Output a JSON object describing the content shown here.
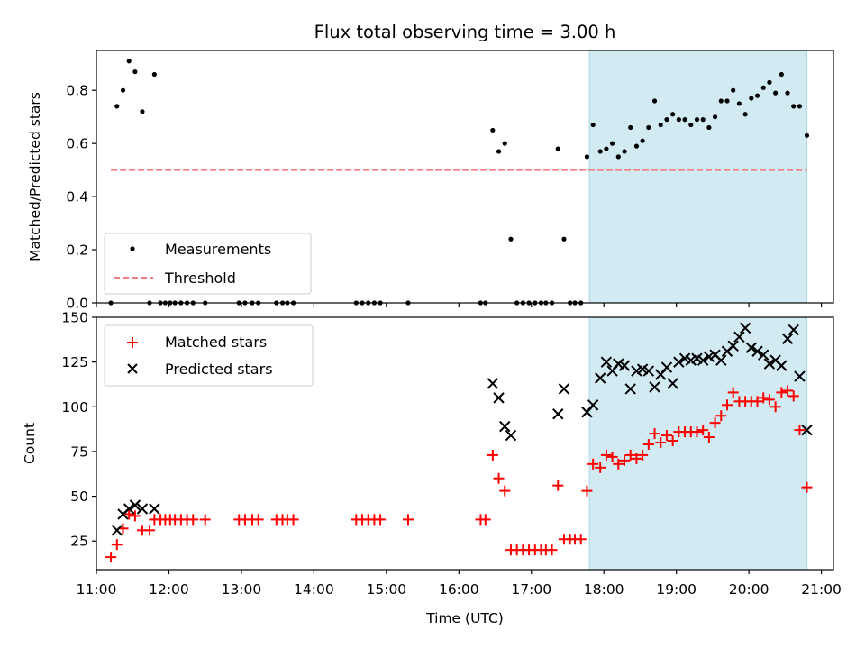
{
  "chart_data": [
    {
      "type": "scatter",
      "title": "Flux total observing time = 3.00 h",
      "ylabel": "Matched/Predicted stars",
      "ylim": [
        0,
        0.95
      ],
      "xlim": [
        "11:00",
        "21:10"
      ],
      "yticks": [
        "0.0",
        "0.2",
        "0.4",
        "0.6",
        "0.8"
      ],
      "legend_position": "lower-left",
      "observing_window": [
        "17:48",
        "20:48"
      ],
      "threshold": {
        "name": "Threshold",
        "value": 0.5,
        "x_range": [
          "11:12",
          "20:48"
        ],
        "color": "#f08080"
      },
      "series": [
        {
          "name": "Measurements",
          "color": "#000000",
          "points": [
            [
              "11:12",
              0
            ],
            [
              "11:17",
              0.74
            ],
            [
              "11:22",
              0.8
            ],
            [
              "11:27",
              0.91
            ],
            [
              "11:32",
              0.87
            ],
            [
              "11:38",
              0.72
            ],
            [
              "11:44",
              0
            ],
            [
              "11:48",
              0.86
            ],
            [
              "11:53",
              0
            ],
            [
              "11:57",
              0
            ],
            [
              "12:01",
              0
            ],
            [
              "12:05",
              0
            ],
            [
              "12:10",
              0
            ],
            [
              "12:15",
              0
            ],
            [
              "12:20",
              0
            ],
            [
              "12:30",
              0
            ],
            [
              "12:58",
              0
            ],
            [
              "13:03",
              0
            ],
            [
              "13:09",
              0
            ],
            [
              "13:14",
              0
            ],
            [
              "13:29",
              0
            ],
            [
              "13:34",
              0
            ],
            [
              "13:38",
              0
            ],
            [
              "13:43",
              0
            ],
            [
              "14:35",
              0
            ],
            [
              "14:40",
              0
            ],
            [
              "14:45",
              0
            ],
            [
              "14:50",
              0
            ],
            [
              "14:55",
              0
            ],
            [
              "15:18",
              0
            ],
            [
              "16:18",
              0
            ],
            [
              "16:22",
              0
            ],
            [
              "16:28",
              0.65
            ],
            [
              "16:33",
              0.57
            ],
            [
              "16:38",
              0.6
            ],
            [
              "16:43",
              0.24
            ],
            [
              "16:48",
              0
            ],
            [
              "16:53",
              0
            ],
            [
              "16:58",
              0
            ],
            [
              "17:03",
              0
            ],
            [
              "17:08",
              0
            ],
            [
              "17:12",
              0
            ],
            [
              "17:17",
              0
            ],
            [
              "17:22",
              0.58
            ],
            [
              "17:27",
              0.24
            ],
            [
              "17:32",
              0
            ],
            [
              "17:36",
              0
            ],
            [
              "17:41",
              0
            ],
            [
              "17:46",
              0.55
            ],
            [
              "17:51",
              0.67
            ],
            [
              "17:57",
              0.57
            ],
            [
              "18:02",
              0.58
            ],
            [
              "18:07",
              0.6
            ],
            [
              "18:12",
              0.55
            ],
            [
              "18:17",
              0.57
            ],
            [
              "18:22",
              0.66
            ],
            [
              "18:27",
              0.59
            ],
            [
              "18:32",
              0.61
            ],
            [
              "18:37",
              0.66
            ],
            [
              "18:42",
              0.76
            ],
            [
              "18:47",
              0.67
            ],
            [
              "18:52",
              0.69
            ],
            [
              "18:57",
              0.71
            ],
            [
              "19:02",
              0.69
            ],
            [
              "19:07",
              0.69
            ],
            [
              "19:12",
              0.67
            ],
            [
              "19:17",
              0.69
            ],
            [
              "19:22",
              0.69
            ],
            [
              "19:27",
              0.66
            ],
            [
              "19:32",
              0.7
            ],
            [
              "19:37",
              0.76
            ],
            [
              "19:42",
              0.76
            ],
            [
              "19:47",
              0.8
            ],
            [
              "19:52",
              0.75
            ],
            [
              "19:57",
              0.71
            ],
            [
              "20:02",
              0.77
            ],
            [
              "20:07",
              0.78
            ],
            [
              "20:12",
              0.81
            ],
            [
              "20:17",
              0.83
            ],
            [
              "20:22",
              0.79
            ],
            [
              "20:27",
              0.86
            ],
            [
              "20:32",
              0.79
            ],
            [
              "20:37",
              0.74
            ],
            [
              "20:42",
              0.74
            ],
            [
              "20:48",
              0.63
            ]
          ]
        }
      ]
    },
    {
      "type": "scatter",
      "xlabel": "Time (UTC)",
      "ylabel": "Count",
      "ylim": [
        9,
        150
      ],
      "xlim": [
        "11:00",
        "21:10"
      ],
      "xticks": [
        "11:00",
        "12:00",
        "13:00",
        "14:00",
        "15:00",
        "16:00",
        "17:00",
        "18:00",
        "19:00",
        "20:00",
        "21:00"
      ],
      "yticks": [
        "25",
        "50",
        "75",
        "100",
        "125",
        "150"
      ],
      "legend_position": "top-left",
      "observing_window": [
        "17:48",
        "20:48"
      ],
      "series": [
        {
          "name": "Matched stars",
          "marker": "plus",
          "color": "#ff0000",
          "points": [
            [
              "11:12",
              16
            ],
            [
              "11:17",
              23
            ],
            [
              "11:22",
              32
            ],
            [
              "11:27",
              40
            ],
            [
              "11:32",
              39
            ],
            [
              "11:38",
              31
            ],
            [
              "11:44",
              31
            ],
            [
              "11:48",
              37
            ],
            [
              "11:53",
              37
            ],
            [
              "11:57",
              37
            ],
            [
              "12:01",
              37
            ],
            [
              "12:05",
              37
            ],
            [
              "12:10",
              37
            ],
            [
              "12:15",
              37
            ],
            [
              "12:20",
              37
            ],
            [
              "12:30",
              37
            ],
            [
              "12:58",
              37
            ],
            [
              "13:03",
              37
            ],
            [
              "13:09",
              37
            ],
            [
              "13:14",
              37
            ],
            [
              "13:29",
              37
            ],
            [
              "13:34",
              37
            ],
            [
              "13:38",
              37
            ],
            [
              "13:43",
              37
            ],
            [
              "14:35",
              37
            ],
            [
              "14:40",
              37
            ],
            [
              "14:45",
              37
            ],
            [
              "14:50",
              37
            ],
            [
              "14:55",
              37
            ],
            [
              "15:18",
              37
            ],
            [
              "16:18",
              37
            ],
            [
              "16:22",
              37
            ],
            [
              "16:28",
              73
            ],
            [
              "16:33",
              60
            ],
            [
              "16:38",
              53
            ],
            [
              "16:43",
              20
            ],
            [
              "16:48",
              20
            ],
            [
              "16:53",
              20
            ],
            [
              "16:58",
              20
            ],
            [
              "17:03",
              20
            ],
            [
              "17:08",
              20
            ],
            [
              "17:12",
              20
            ],
            [
              "17:17",
              20
            ],
            [
              "17:22",
              56
            ],
            [
              "17:27",
              26
            ],
            [
              "17:32",
              26
            ],
            [
              "17:36",
              26
            ],
            [
              "17:41",
              26
            ],
            [
              "17:46",
              53
            ],
            [
              "17:51",
              68
            ],
            [
              "17:57",
              66
            ],
            [
              "18:02",
              73
            ],
            [
              "18:07",
              72
            ],
            [
              "18:12",
              68
            ],
            [
              "18:17",
              70
            ],
            [
              "18:22",
              73
            ],
            [
              "18:27",
              71
            ],
            [
              "18:32",
              73
            ],
            [
              "18:37",
              79
            ],
            [
              "18:42",
              85
            ],
            [
              "18:47",
              80
            ],
            [
              "18:52",
              84
            ],
            [
              "18:57",
              81
            ],
            [
              "19:02",
              86
            ],
            [
              "19:07",
              86
            ],
            [
              "19:12",
              86
            ],
            [
              "19:17",
              86
            ],
            [
              "19:22",
              87
            ],
            [
              "19:27",
              83
            ],
            [
              "19:32",
              91
            ],
            [
              "19:37",
              95
            ],
            [
              "19:42",
              101
            ],
            [
              "19:47",
              108
            ],
            [
              "19:52",
              103
            ],
            [
              "19:57",
              103
            ],
            [
              "20:02",
              103
            ],
            [
              "20:07",
              103
            ],
            [
              "20:12",
              105
            ],
            [
              "20:17",
              104
            ],
            [
              "20:22",
              100
            ],
            [
              "20:27",
              108
            ],
            [
              "20:32",
              109
            ],
            [
              "20:37",
              106
            ],
            [
              "20:42",
              87
            ],
            [
              "20:48",
              55
            ]
          ]
        },
        {
          "name": "Predicted stars",
          "marker": "x",
          "color": "#000000",
          "points": [
            [
              "11:17",
              31
            ],
            [
              "11:22",
              40
            ],
            [
              "11:27",
              43
            ],
            [
              "11:32",
              45
            ],
            [
              "11:38",
              43
            ],
            [
              "11:48",
              43
            ],
            [
              "16:28",
              113
            ],
            [
              "16:33",
              105
            ],
            [
              "16:38",
              89
            ],
            [
              "16:43",
              84
            ],
            [
              "17:22",
              96
            ],
            [
              "17:27",
              110
            ],
            [
              "17:46",
              97
            ],
            [
              "17:51",
              101
            ],
            [
              "17:57",
              116
            ],
            [
              "18:02",
              125
            ],
            [
              "18:07",
              120
            ],
            [
              "18:12",
              124
            ],
            [
              "18:17",
              123
            ],
            [
              "18:22",
              110
            ],
            [
              "18:27",
              120
            ],
            [
              "18:32",
              121
            ],
            [
              "18:37",
              120
            ],
            [
              "18:42",
              111
            ],
            [
              "18:47",
              118
            ],
            [
              "18:52",
              122
            ],
            [
              "18:57",
              113
            ],
            [
              "19:02",
              125
            ],
            [
              "19:07",
              127
            ],
            [
              "19:12",
              126
            ],
            [
              "19:17",
              127
            ],
            [
              "19:22",
              126
            ],
            [
              "19:27",
              128
            ],
            [
              "19:32",
              129
            ],
            [
              "19:37",
              126
            ],
            [
              "19:42",
              131
            ],
            [
              "19:47",
              134
            ],
            [
              "19:52",
              139
            ],
            [
              "19:57",
              144
            ],
            [
              "20:02",
              133
            ],
            [
              "20:07",
              131
            ],
            [
              "20:12",
              129
            ],
            [
              "20:17",
              124
            ],
            [
              "20:22",
              126
            ],
            [
              "20:27",
              123
            ],
            [
              "20:32",
              138
            ],
            [
              "20:37",
              143
            ],
            [
              "20:42",
              117
            ],
            [
              "20:48",
              87
            ]
          ]
        }
      ]
    }
  ]
}
